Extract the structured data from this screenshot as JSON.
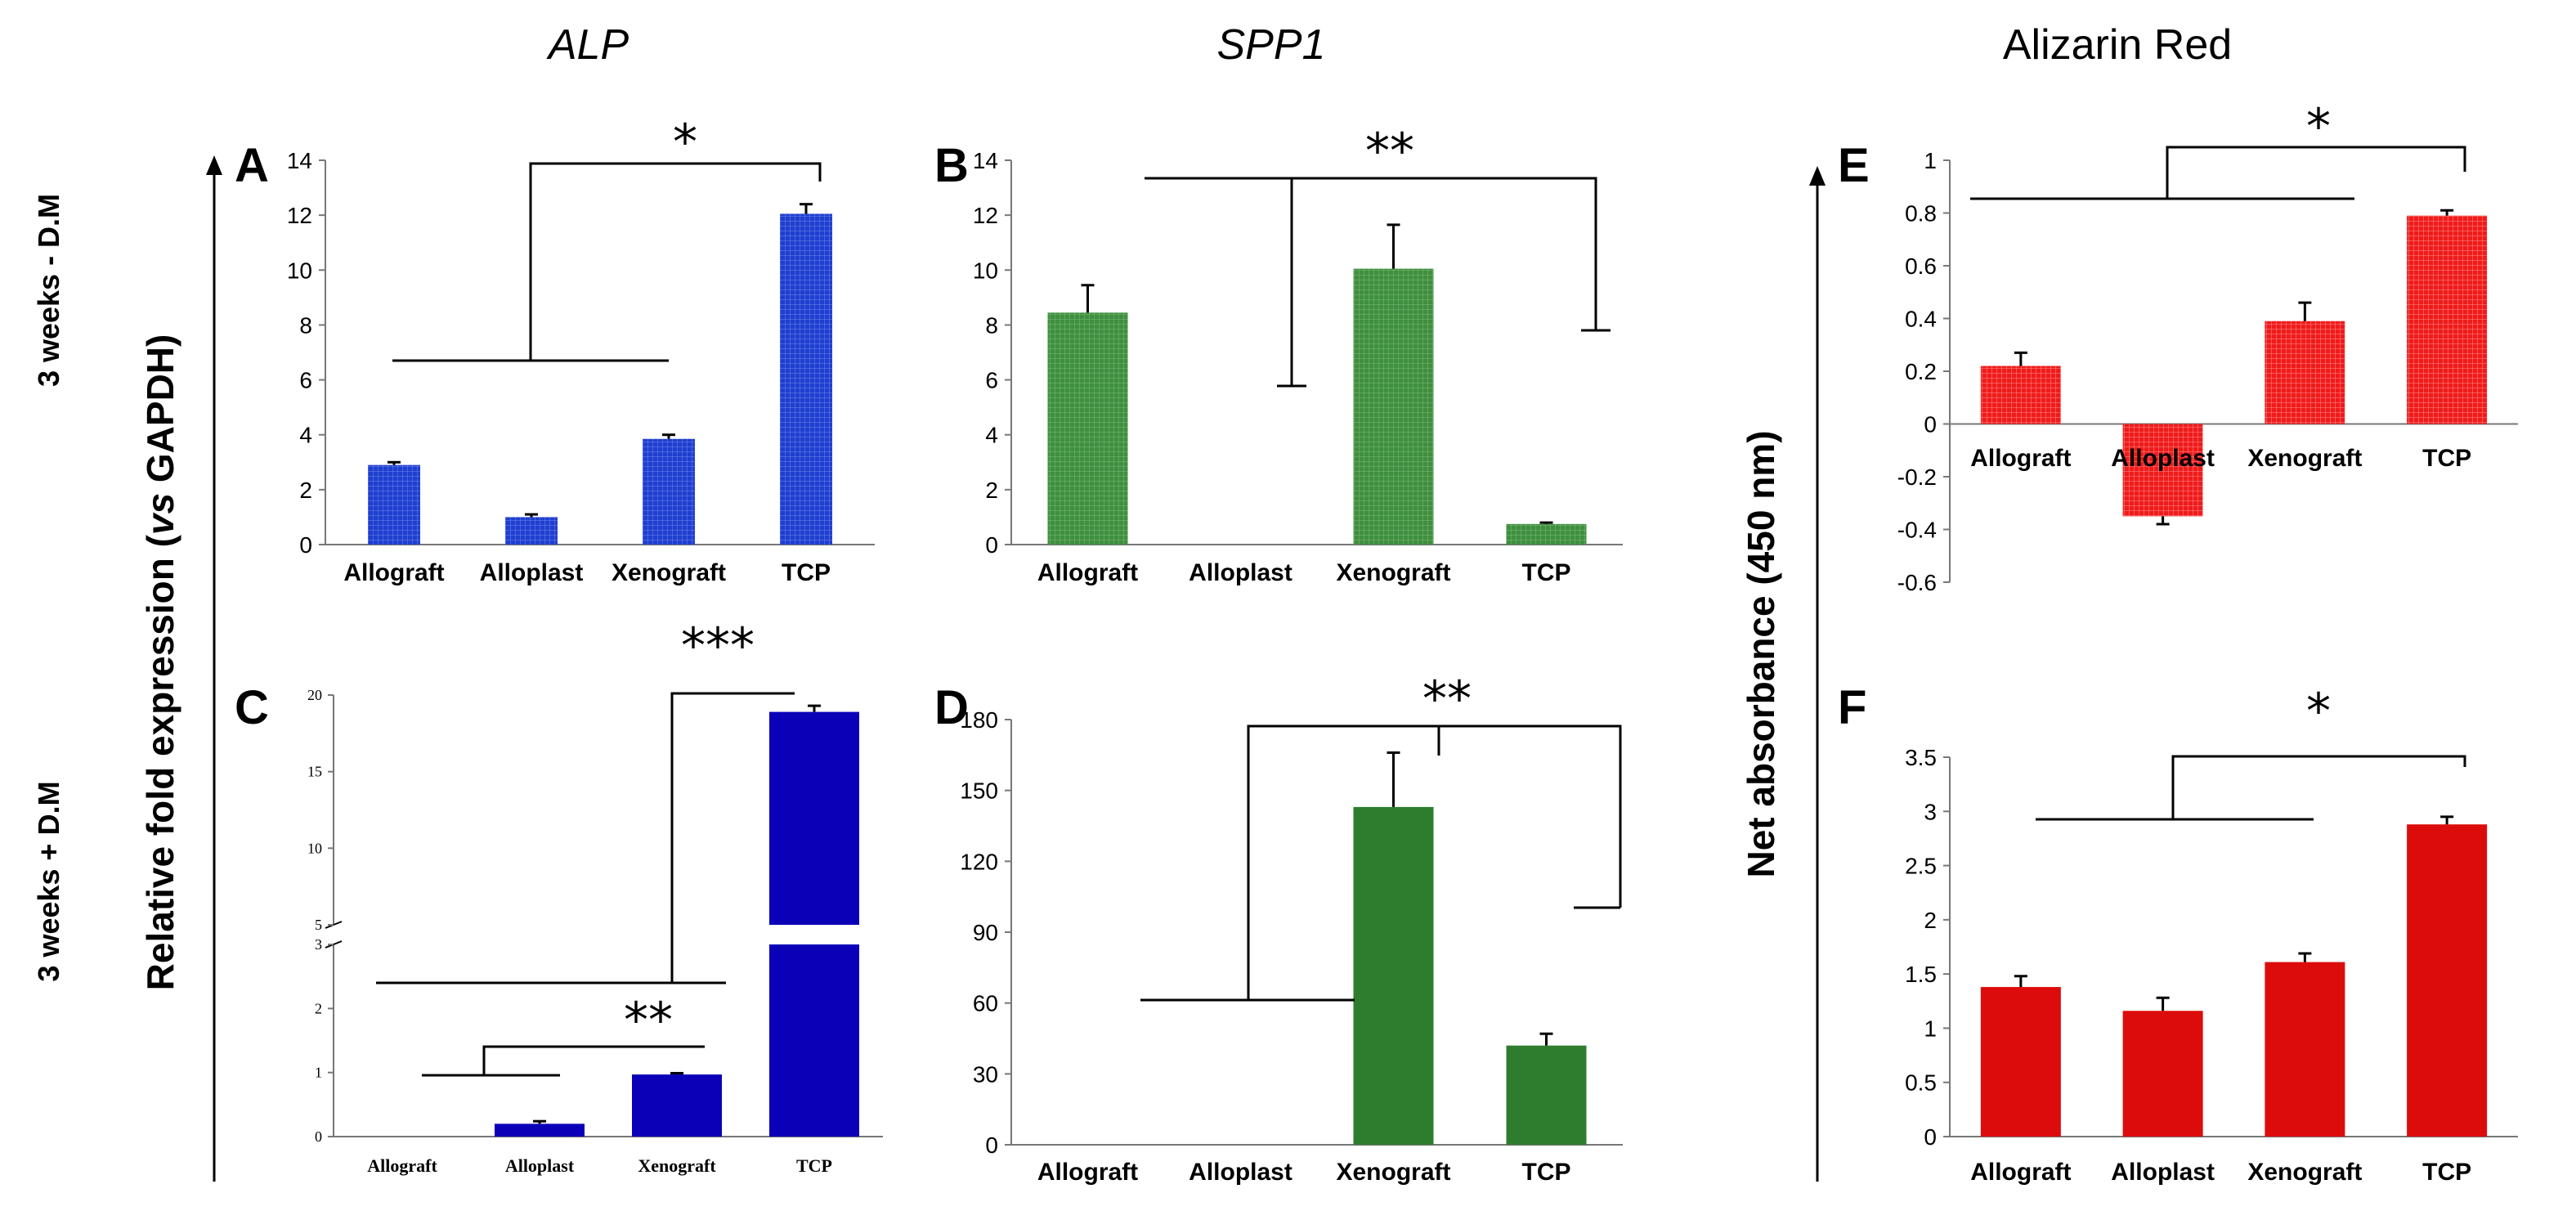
{
  "figure": {
    "column_titles": {
      "alp": "ALP",
      "spp1": "SPP1",
      "alizarin": "Alizarin Red"
    },
    "row_labels": {
      "minus_dm": "3 weeks  - D.M",
      "plus_dm": "3 weeks + D.M"
    },
    "shared_ylabels": {
      "fold_prefix": "Relative fold expression (",
      "fold_vs": "vs",
      "fold_suffix": " GAPDH)",
      "absorbance": "Net absorbance (450 nm)"
    }
  },
  "colors": {
    "alp_minus": "#1f3fcf",
    "alp_plus": "#0b00b8",
    "spp1": "#2e7d2e",
    "alizarin_e": "#ef1b1b",
    "alizarin_f": "#dd0c0c",
    "axis": "#777777",
    "text": "#000000"
  },
  "chart_data": [
    {
      "panel": "A",
      "type": "bar",
      "categories": [
        "Allograft",
        "Alloplast",
        "Xenograft",
        "TCP"
      ],
      "values": [
        2.9,
        1.0,
        3.85,
        12.05
      ],
      "errors": [
        0.1,
        0.1,
        0.15,
        0.35
      ],
      "ylim": [
        0,
        14
      ],
      "yticks": [
        "0",
        "2",
        "4",
        "6",
        "8",
        "10",
        "12",
        "14"
      ],
      "significance": [
        {
          "label": "*",
          "groups": "Allograft, Alloplast, Xenograft vs TCP"
        }
      ]
    },
    {
      "panel": "B",
      "type": "bar",
      "categories": [
        "Allograft",
        "Alloplast",
        "Xenograft",
        "TCP"
      ],
      "values": [
        8.45,
        0,
        10.05,
        0.75
      ],
      "errors": [
        1.0,
        0,
        1.6,
        0.05
      ],
      "ylim": [
        0,
        14
      ],
      "yticks": [
        "0",
        "2",
        "4",
        "6",
        "8",
        "10",
        "12",
        "14"
      ],
      "significance": [
        {
          "label": "**",
          "groups": "Allograft vs Alloplast vs TCP"
        }
      ]
    },
    {
      "panel": "C",
      "type": "bar",
      "axis_break": [
        3,
        5
      ],
      "categories": [
        "Allograft",
        "Alloplast",
        "Xenograft",
        "TCP"
      ],
      "values": [
        0,
        0.2,
        0.97,
        18.9
      ],
      "errors": [
        0,
        0.04,
        0.02,
        0.4
      ],
      "ylim": [
        0,
        20
      ],
      "yticks": [
        "0",
        "1",
        "2",
        "3",
        "5",
        "10",
        "15",
        "20"
      ],
      "significance": [
        {
          "label": "***",
          "groups": "Allograft, Alloplast, Xenograft vs TCP"
        },
        {
          "label": "**",
          "groups": "Allograft, Alloplast vs Xenograft"
        }
      ]
    },
    {
      "panel": "D",
      "type": "bar",
      "categories": [
        "Allograft",
        "Alloplast",
        "Xenograft",
        "TCP"
      ],
      "values": [
        0,
        0,
        143,
        42
      ],
      "errors": [
        0,
        0,
        23,
        5
      ],
      "ylim": [
        0,
        180
      ],
      "yticks": [
        "0",
        "30",
        "60",
        "90",
        "120",
        "150",
        "180"
      ],
      "significance": [
        {
          "label": "**",
          "groups": "Allograft, Alloplast vs Xenograft, TCP"
        }
      ]
    },
    {
      "panel": "E",
      "type": "bar",
      "categories": [
        "Allograft",
        "Alloplast",
        "Xenograft",
        "TCP"
      ],
      "values": [
        0.22,
        -0.35,
        0.39,
        0.79
      ],
      "errors": [
        0.05,
        0.03,
        0.07,
        0.02
      ],
      "ylim": [
        -0.6,
        1
      ],
      "yticks": [
        "-0.6",
        "-0.4",
        "-0.2",
        "0",
        "0.2",
        "0.4",
        "0.6",
        "0.8",
        "1"
      ],
      "significance": [
        {
          "label": "*",
          "groups": "Allograft, Alloplast, Xenograft vs TCP"
        }
      ]
    },
    {
      "panel": "F",
      "type": "bar",
      "categories": [
        "Allograft",
        "Alloplast",
        "Xenograft",
        "TCP"
      ],
      "values": [
        1.38,
        1.16,
        1.61,
        2.88
      ],
      "errors": [
        0.1,
        0.12,
        0.08,
        0.07
      ],
      "ylim": [
        0,
        3.5
      ],
      "yticks": [
        "0",
        "0.5",
        "1",
        "1.5",
        "2",
        "2.5",
        "3",
        "3.5"
      ],
      "significance": [
        {
          "label": "*",
          "groups": "Allograft, Alloplast, Xenograft vs TCP"
        }
      ]
    }
  ]
}
